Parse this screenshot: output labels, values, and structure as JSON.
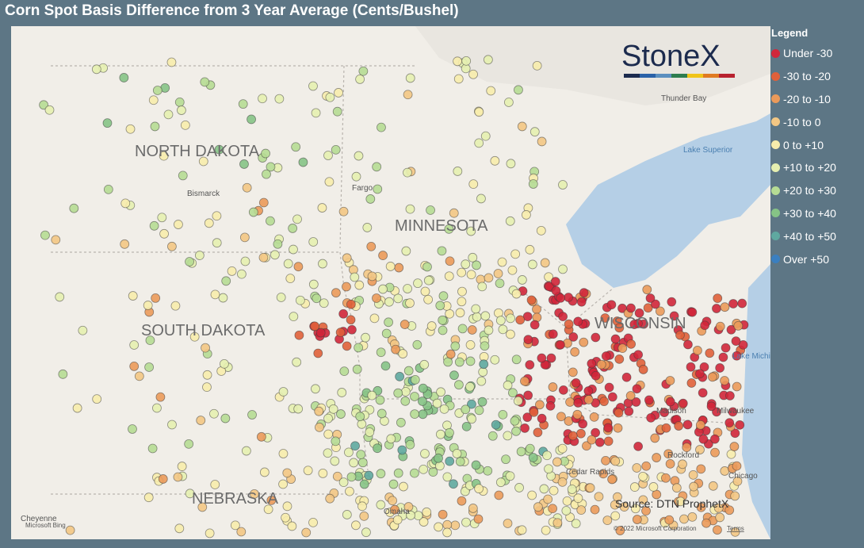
{
  "title": "Corn Spot Basis Difference from 3 Year Average (Cents/Bushel)",
  "legend": {
    "title": "Legend",
    "items": [
      {
        "label": "Under -30",
        "color": "#d0263a"
      },
      {
        "label": "-30 to -20",
        "color": "#e0603a"
      },
      {
        "label": "-20 to -10",
        "color": "#eb9a5a"
      },
      {
        "label": "-10 to 0",
        "color": "#f3c784"
      },
      {
        "label": "0 to +10",
        "color": "#f7ecac"
      },
      {
        "label": "+10 to +20",
        "color": "#e6efb0"
      },
      {
        "label": "+20 to +30",
        "color": "#b6dc94"
      },
      {
        "label": "+30 to +40",
        "color": "#86c386"
      },
      {
        "label": "+40 to +50",
        "color": "#5fa8a0"
      },
      {
        "label": "Over +50",
        "color": "#3a7fc0"
      }
    ]
  },
  "logo": "StoneX",
  "map_labels": [
    "NORTH DAKOTA",
    "MINNESOTA",
    "SOUTH DAKOTA",
    "WISCONSIN",
    "NEBRASKA"
  ],
  "place_labels": [
    "Bismarck",
    "Fargo",
    "Thunder Bay",
    "Lake Superior",
    "Lake Michigan",
    "Milwaukee",
    "Madison",
    "Rockford",
    "Chicago",
    "Cedar Rapids",
    "Omaha",
    "Cheyenne"
  ],
  "source": "Source: DTN ProphetX",
  "attribution": "Microsoft Bing",
  "copyright": "© 2022 Microsoft Corporation",
  "terms": "Terms"
}
